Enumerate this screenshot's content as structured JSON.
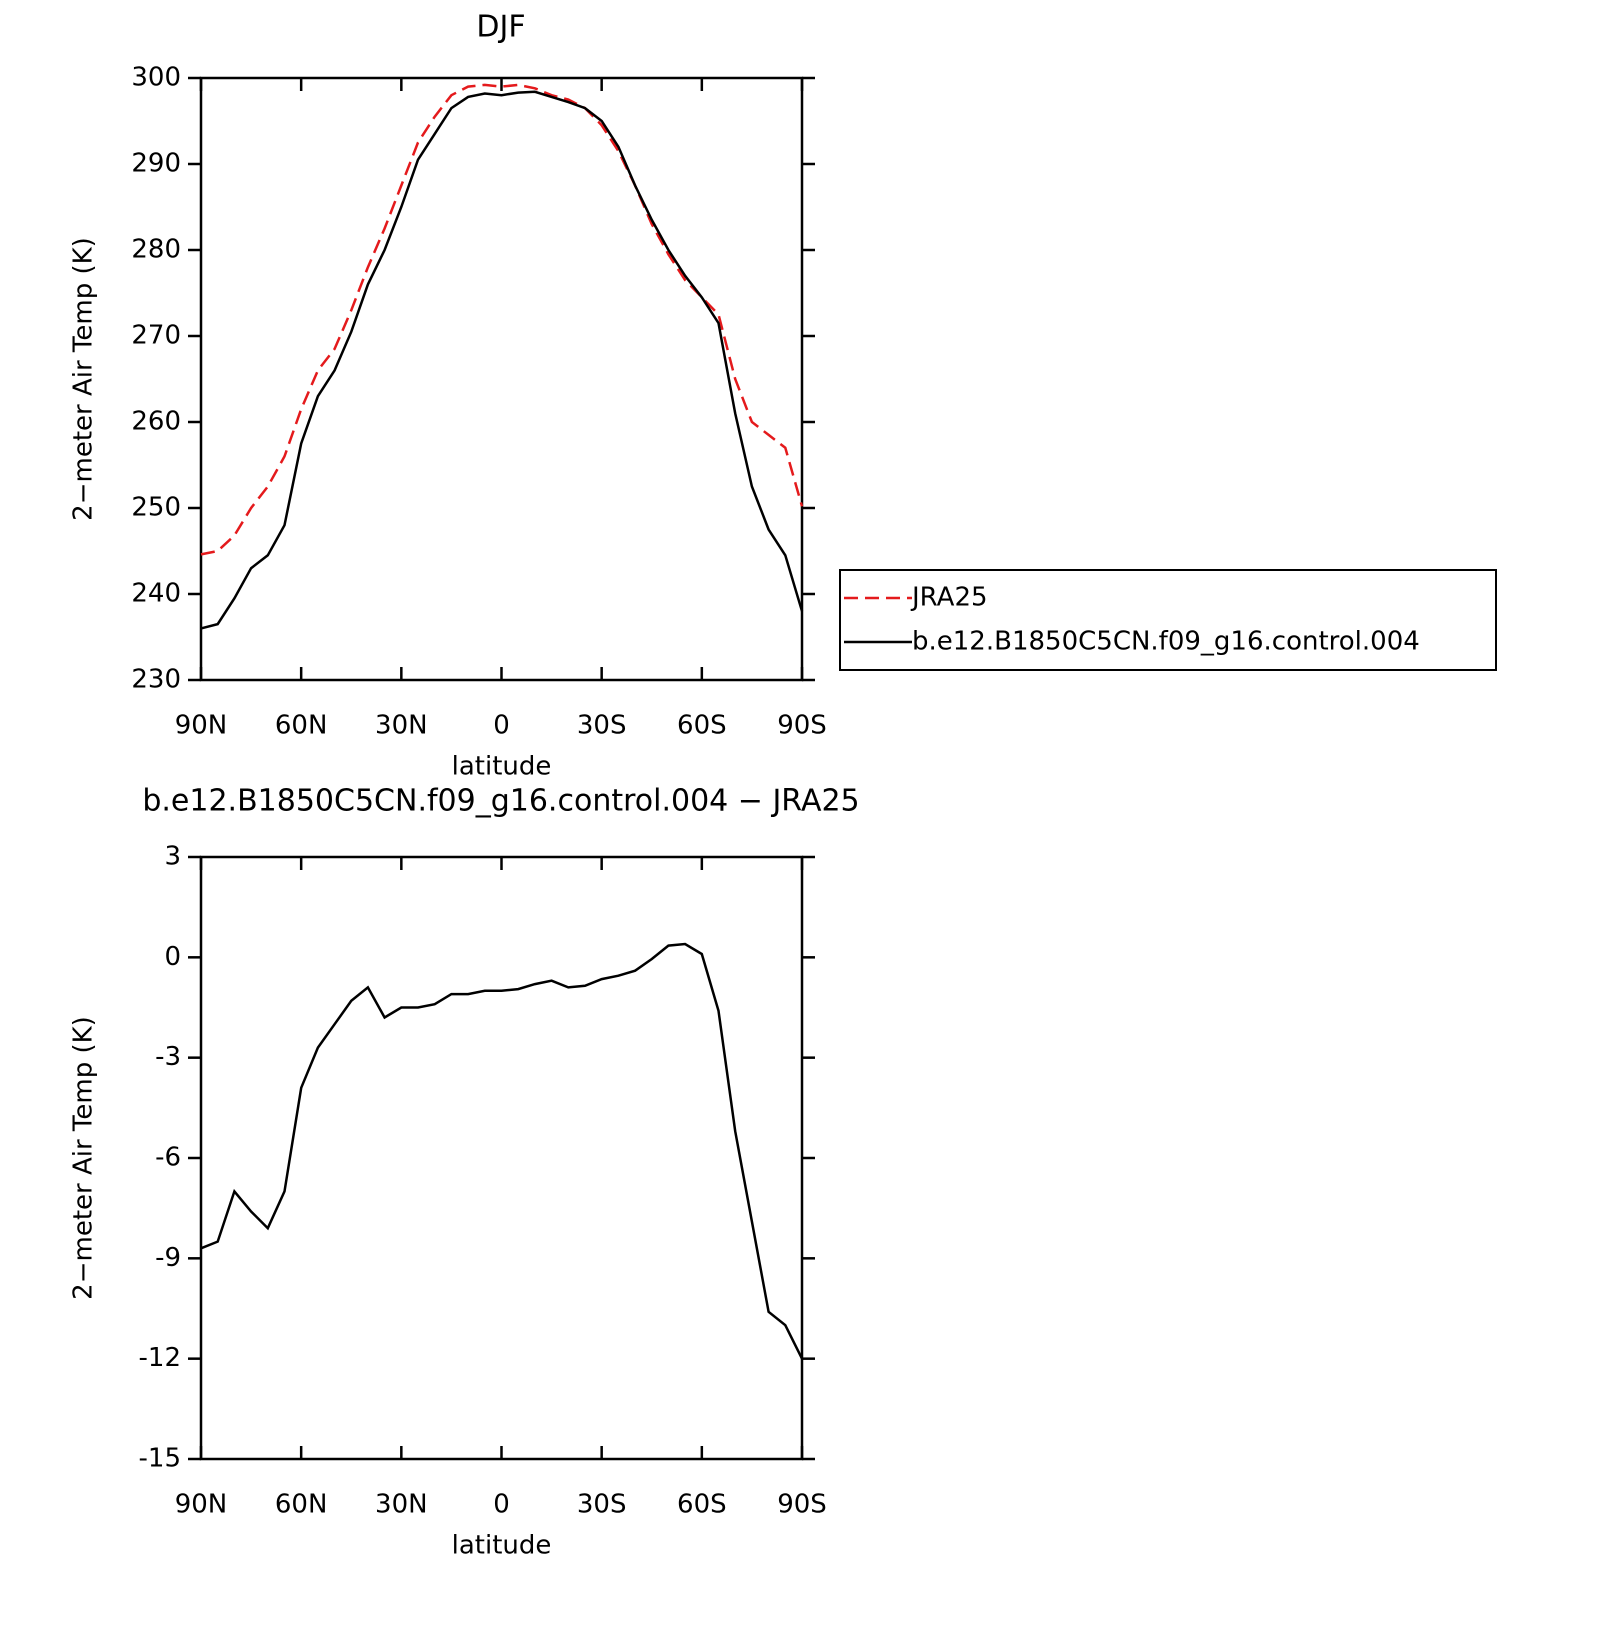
{
  "chart_data": [
    {
      "type": "line",
      "title": "DJF",
      "xlabel": "latitude",
      "ylabel": "2−meter Air Temp (K)",
      "x": [
        90,
        85,
        80,
        75,
        70,
        65,
        60,
        55,
        50,
        45,
        40,
        35,
        30,
        25,
        20,
        15,
        10,
        5,
        0,
        -5,
        -10,
        -15,
        -20,
        -25,
        -30,
        -35,
        -40,
        -45,
        -50,
        -55,
        -60,
        -65,
        -70,
        -75,
        -80,
        -85,
        -90
      ],
      "series": [
        {
          "name": "JRA25",
          "color": "#e41a1c",
          "dash": "dashed",
          "values": [
            244.6,
            245,
            246.8,
            250,
            252.5,
            256,
            261.5,
            266,
            268.5,
            273,
            278,
            282.5,
            287.5,
            292.5,
            295.5,
            298,
            299,
            299.2,
            299,
            299.2,
            298.8,
            298,
            297.5,
            296.5,
            294.5,
            291.5,
            287.5,
            283,
            279.5,
            276.5,
            274.5,
            272.5,
            265,
            260,
            258.5,
            257,
            250.2
          ]
        },
        {
          "name": "b.e12.B1850C5CN.f09_g16.control.004",
          "color": "#000000",
          "dash": "solid",
          "values": [
            236,
            236.5,
            239.5,
            243,
            244.5,
            248,
            257.5,
            263,
            266,
            270.5,
            276,
            280,
            285,
            290.5,
            293.5,
            296.5,
            297.8,
            298.2,
            298,
            298.3,
            298.4,
            297.8,
            297.2,
            296.5,
            295,
            292,
            287.5,
            283.5,
            280,
            277,
            274.5,
            271.5,
            261,
            252.5,
            247.5,
            244.5,
            238
          ]
        }
      ],
      "xlim": [
        90,
        -90
      ],
      "xticks": [
        {
          "value": 90,
          "label": "90N"
        },
        {
          "value": 60,
          "label": "60N"
        },
        {
          "value": 30,
          "label": "30N"
        },
        0,
        {
          "value": -30,
          "label": "30S"
        },
        {
          "value": -60,
          "label": "60S"
        },
        {
          "value": -90,
          "label": "90S"
        }
      ],
      "ylim": [
        230,
        300
      ],
      "yticks": [
        230,
        240,
        250,
        260,
        270,
        280,
        290,
        300
      ],
      "legend": "right"
    },
    {
      "type": "line",
      "title": "b.e12.B1850C5CN.f09_g16.control.004 − JRA25",
      "xlabel": "latitude",
      "ylabel": "2−meter Air Temp (K)",
      "x": [
        90,
        85,
        80,
        75,
        70,
        65,
        60,
        55,
        50,
        45,
        40,
        35,
        30,
        25,
        20,
        15,
        10,
        5,
        0,
        -5,
        -10,
        -15,
        -20,
        -25,
        -30,
        -35,
        -40,
        -45,
        -50,
        -55,
        -60,
        -65,
        -70,
        -75,
        -80,
        -85,
        -90
      ],
      "series": [
        {
          "color": "#000000",
          "dash": "solid",
          "values": [
            -8.7,
            -8.5,
            -7.0,
            -7.6,
            -8.1,
            -7.0,
            -3.9,
            -2.7,
            -2.0,
            -1.3,
            -0.9,
            -1.8,
            -1.5,
            -1.5,
            -1.4,
            -1.1,
            -1.1,
            -1.0,
            -1.0,
            -0.95,
            -0.8,
            -0.7,
            -0.9,
            -0.85,
            -0.65,
            -0.55,
            -0.4,
            -0.05,
            0.35,
            0.4,
            0.1,
            -1.6,
            -5.2,
            -7.9,
            -10.6,
            -11.0,
            -12.0
          ]
        }
      ],
      "xlim": [
        90,
        -90
      ],
      "xticks": [
        {
          "value": 90,
          "label": "90N"
        },
        {
          "value": 60,
          "label": "60N"
        },
        {
          "value": 30,
          "label": "30N"
        },
        0,
        {
          "value": -30,
          "label": "30S"
        },
        {
          "value": -60,
          "label": "60S"
        },
        {
          "value": -90,
          "label": "90S"
        }
      ],
      "ylim": [
        -15,
        3
      ],
      "yticks": [
        -15,
        -12,
        -9,
        -6,
        -3,
        0,
        3
      ]
    }
  ]
}
